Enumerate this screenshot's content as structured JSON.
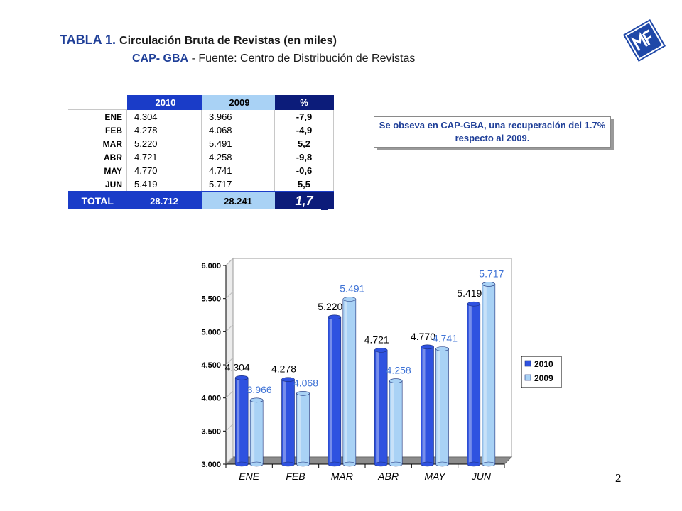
{
  "header": {
    "table_no": "TABLA 1.",
    "table_title": "Circulación Bruta de Revistas (en miles)",
    "subtitle_bold": "CAP- GBA",
    "subtitle_rest": "- Fuente:  Centro de Distribución de Revistas",
    "page_number": "2"
  },
  "table": {
    "headers": [
      "2010",
      "2009",
      "%"
    ],
    "rows": [
      {
        "label": "ENE",
        "v2010": "4.304",
        "v2009": "3.966",
        "pct": "-7,9"
      },
      {
        "label": "FEB",
        "v2010": "4.278",
        "v2009": "4.068",
        "pct": "-4,9"
      },
      {
        "label": "MAR",
        "v2010": "5.220",
        "v2009": "5.491",
        "pct": "5,2"
      },
      {
        "label": "ABR",
        "v2010": "4.721",
        "v2009": "4.258",
        "pct": "-9,8"
      },
      {
        "label": "MAY",
        "v2010": "4.770",
        "v2009": "4.741",
        "pct": "-0,6"
      },
      {
        "label": "JUN",
        "v2010": "5.419",
        "v2009": "5.717",
        "pct": "5,5"
      }
    ],
    "total": {
      "label": "TOTAL",
      "v2010": "28.712",
      "v2009": "28.241",
      "pct": "1,7"
    },
    "colors": {
      "header2010": "#1a3cc8",
      "header2009": "#a9d2f5",
      "headerPct": "#0c1c7a",
      "text": "#ffffff"
    }
  },
  "note": "Se obseva en CAP-GBA, una recuperación del 1.7% respecto al 2009.",
  "chart_data": {
    "type": "bar",
    "categories": [
      "ENE",
      "FEB",
      "MAR",
      "ABR",
      "MAY",
      "JUN"
    ],
    "series": [
      {
        "name": "2010",
        "values": [
          4304,
          4278,
          5220,
          4721,
          4770,
          5419
        ],
        "labels": [
          "4.304",
          "4.278",
          "5.220",
          "4.721",
          "4.770",
          "5.419"
        ],
        "color": "#2f52e0",
        "label_color": "#000000"
      },
      {
        "name": "2009",
        "values": [
          3966,
          4068,
          5491,
          4258,
          4741,
          5717
        ],
        "labels": [
          "3.966",
          "4.068",
          "5.491",
          "4.258",
          "4.741",
          "5.717"
        ],
        "color": "#a9d2f5",
        "label_color": "#3f73d6"
      }
    ],
    "ylim": [
      3000,
      6000
    ],
    "yticks": [
      "3.000",
      "3.500",
      "4.000",
      "4.500",
      "5.000",
      "5.500",
      "6.000"
    ],
    "ytick_values": [
      3000,
      3500,
      4000,
      4500,
      5000,
      5500,
      6000
    ],
    "grid": false,
    "legend": "right",
    "title": "",
    "xlabel": "",
    "ylabel": ""
  }
}
